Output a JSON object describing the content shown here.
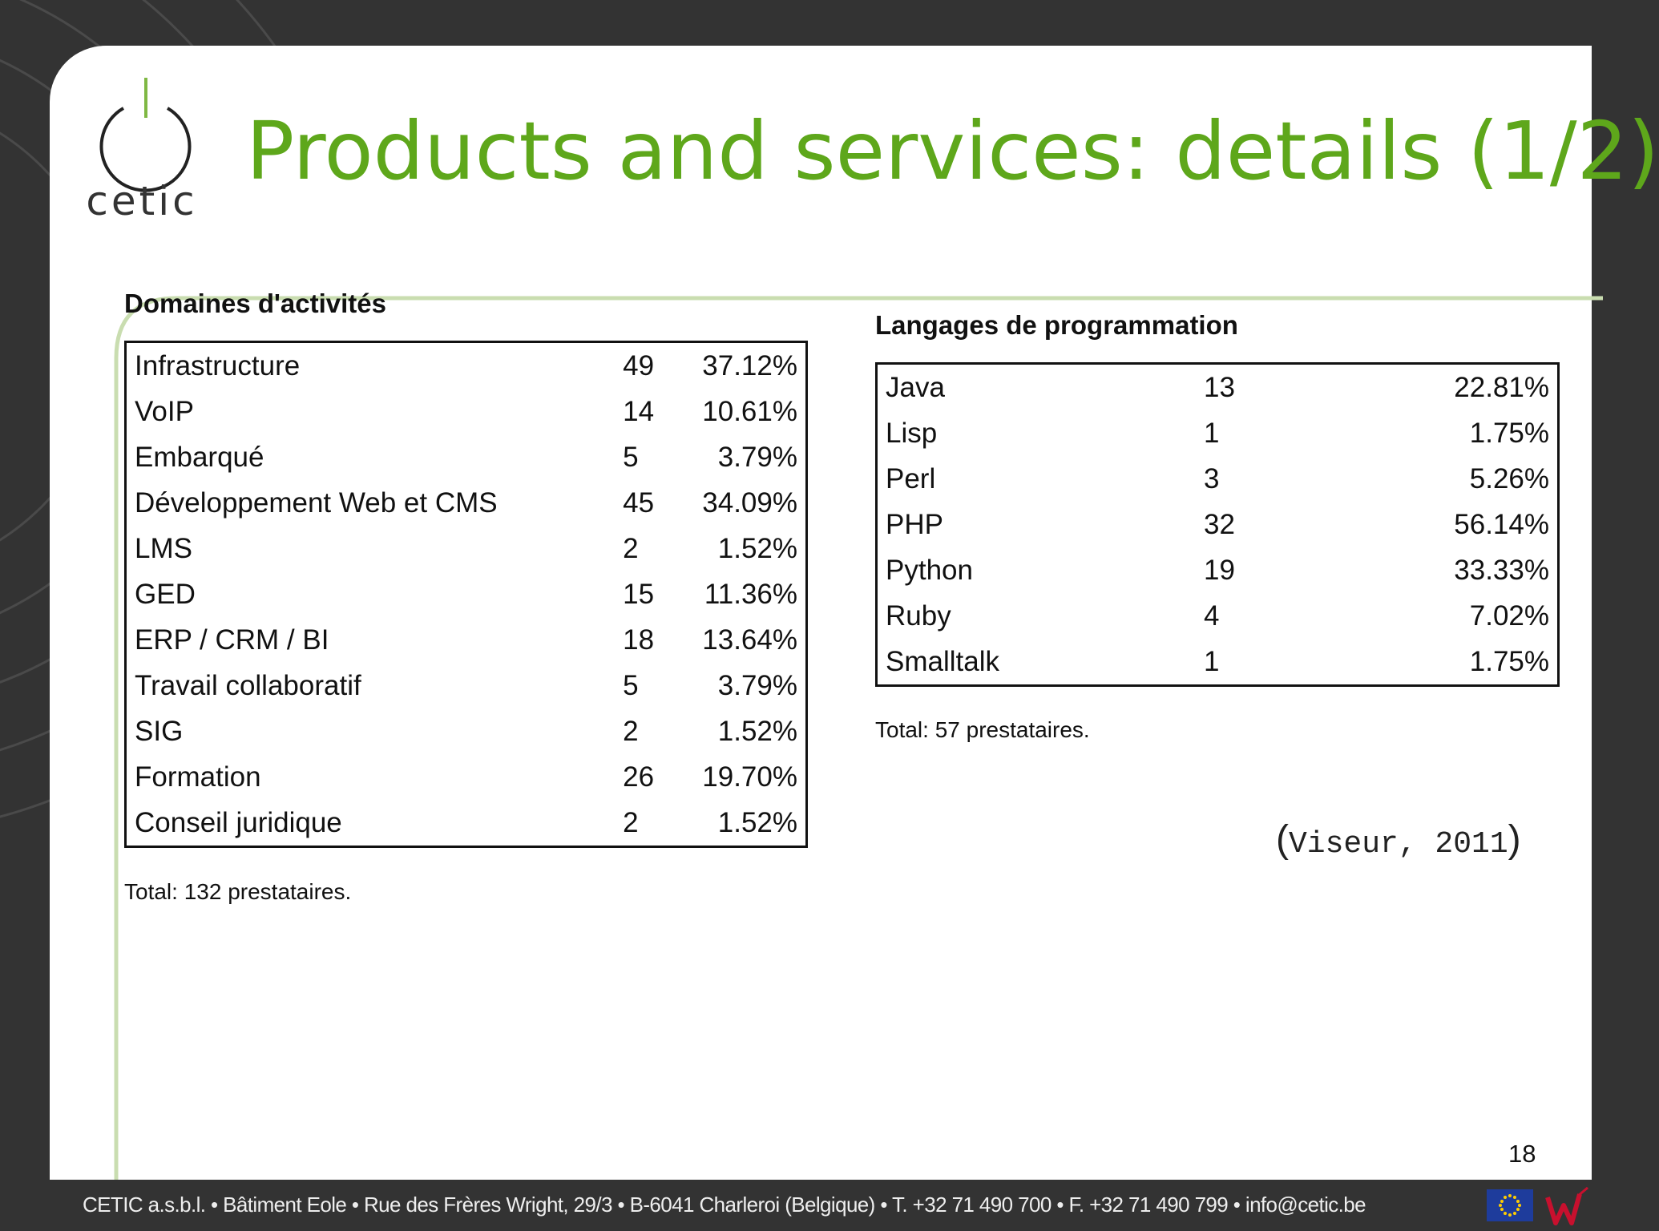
{
  "slide": {
    "logo_text": "cetic",
    "title": "Products and services: details (1/2)",
    "page_number": "18"
  },
  "domaines": {
    "title": "Domaines d'activités",
    "rows": [
      {
        "label": "Infrastructure",
        "count": "49",
        "percent": "37.12%"
      },
      {
        "label": "VoIP",
        "count": "14",
        "percent": "10.61%"
      },
      {
        "label": "Embarqué",
        "count": "5",
        "percent": "3.79%"
      },
      {
        "label": "Développement Web et CMS",
        "count": "45",
        "percent": "34.09%"
      },
      {
        "label": "LMS",
        "count": "2",
        "percent": "1.52%"
      },
      {
        "label": "GED",
        "count": "15",
        "percent": "11.36%"
      },
      {
        "label": "ERP / CRM / BI",
        "count": "18",
        "percent": "13.64%"
      },
      {
        "label": "Travail collaboratif",
        "count": "5",
        "percent": "3.79%"
      },
      {
        "label": "SIG",
        "count": "2",
        "percent": "1.52%"
      },
      {
        "label": "Formation",
        "count": "26",
        "percent": "19.70%"
      },
      {
        "label": "Conseil juridique",
        "count": "2",
        "percent": "1.52%"
      }
    ],
    "total": "Total: 132 prestataires."
  },
  "langages": {
    "title": "Langages de programmation",
    "rows": [
      {
        "label": "Java",
        "count": "13",
        "percent": "22.81%"
      },
      {
        "label": "Lisp",
        "count": "1",
        "percent": "1.75%"
      },
      {
        "label": "Perl",
        "count": "3",
        "percent": "5.26%"
      },
      {
        "label": "PHP",
        "count": "32",
        "percent": "56.14%"
      },
      {
        "label": "Python",
        "count": "19",
        "percent": "33.33%"
      },
      {
        "label": "Ruby",
        "count": "4",
        "percent": "7.02%"
      },
      {
        "label": "Smalltalk",
        "count": "1",
        "percent": "1.75%"
      }
    ],
    "total": "Total: 57 prestataires."
  },
  "citation": {
    "open": "(",
    "ref": "Viseur, 2011",
    "close": ")"
  },
  "footer": {
    "text": "CETIC a.s.b.l. • Bâtiment Eole • Rue des Frères Wright, 29/3 • B-6041 Charleroi (Belgique) • T. +32 71 490 700 • F. +32 71 490 799 • info@cetic.be"
  },
  "colors": {
    "title_green": "#5ea71b",
    "frame_green": "#c9ddb0",
    "background": "#333333",
    "eu_blue": "#1e3c9c",
    "eu_star": "#ffcc00",
    "partner_red": "#c8102e"
  }
}
